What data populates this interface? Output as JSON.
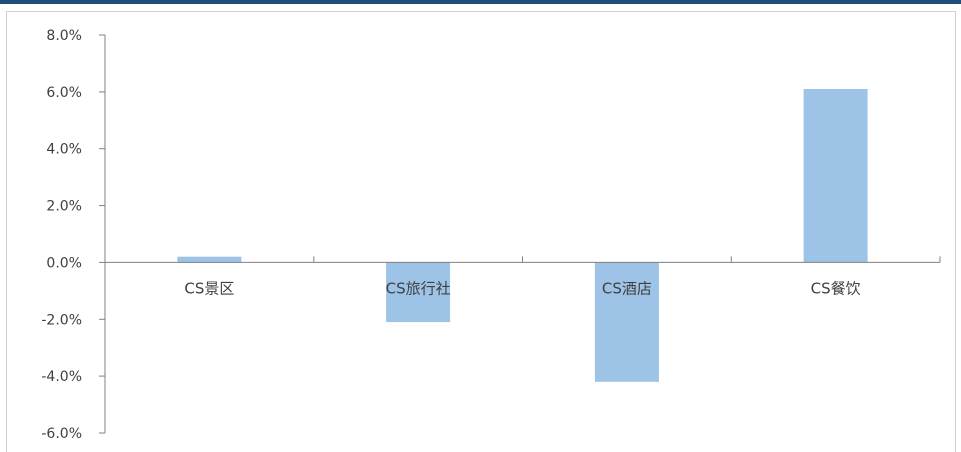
{
  "chart_data": {
    "type": "bar",
    "title": "",
    "xlabel": "",
    "ylabel": "",
    "categories": [
      "CS景区",
      "CS旅行社",
      "CS酒店",
      "CS餐饮"
    ],
    "values": [
      0.2,
      -2.1,
      -4.2,
      6.1
    ],
    "ylim": [
      -6.0,
      8.0
    ],
    "ytick_values": [
      8.0,
      6.0,
      4.0,
      2.0,
      0.0,
      -2.0,
      -4.0,
      -6.0
    ],
    "ytick_labels": [
      "8.0%",
      "6.0%",
      "4.0%",
      "2.0%",
      "0.0%",
      "-2.0%",
      "-4.0%",
      "-6.0%"
    ],
    "grid": false,
    "legend": "none",
    "colors": {
      "bar": "#9dc3e6",
      "axis": "#808080",
      "text": "#404040",
      "header": "#1f4e79"
    }
  }
}
